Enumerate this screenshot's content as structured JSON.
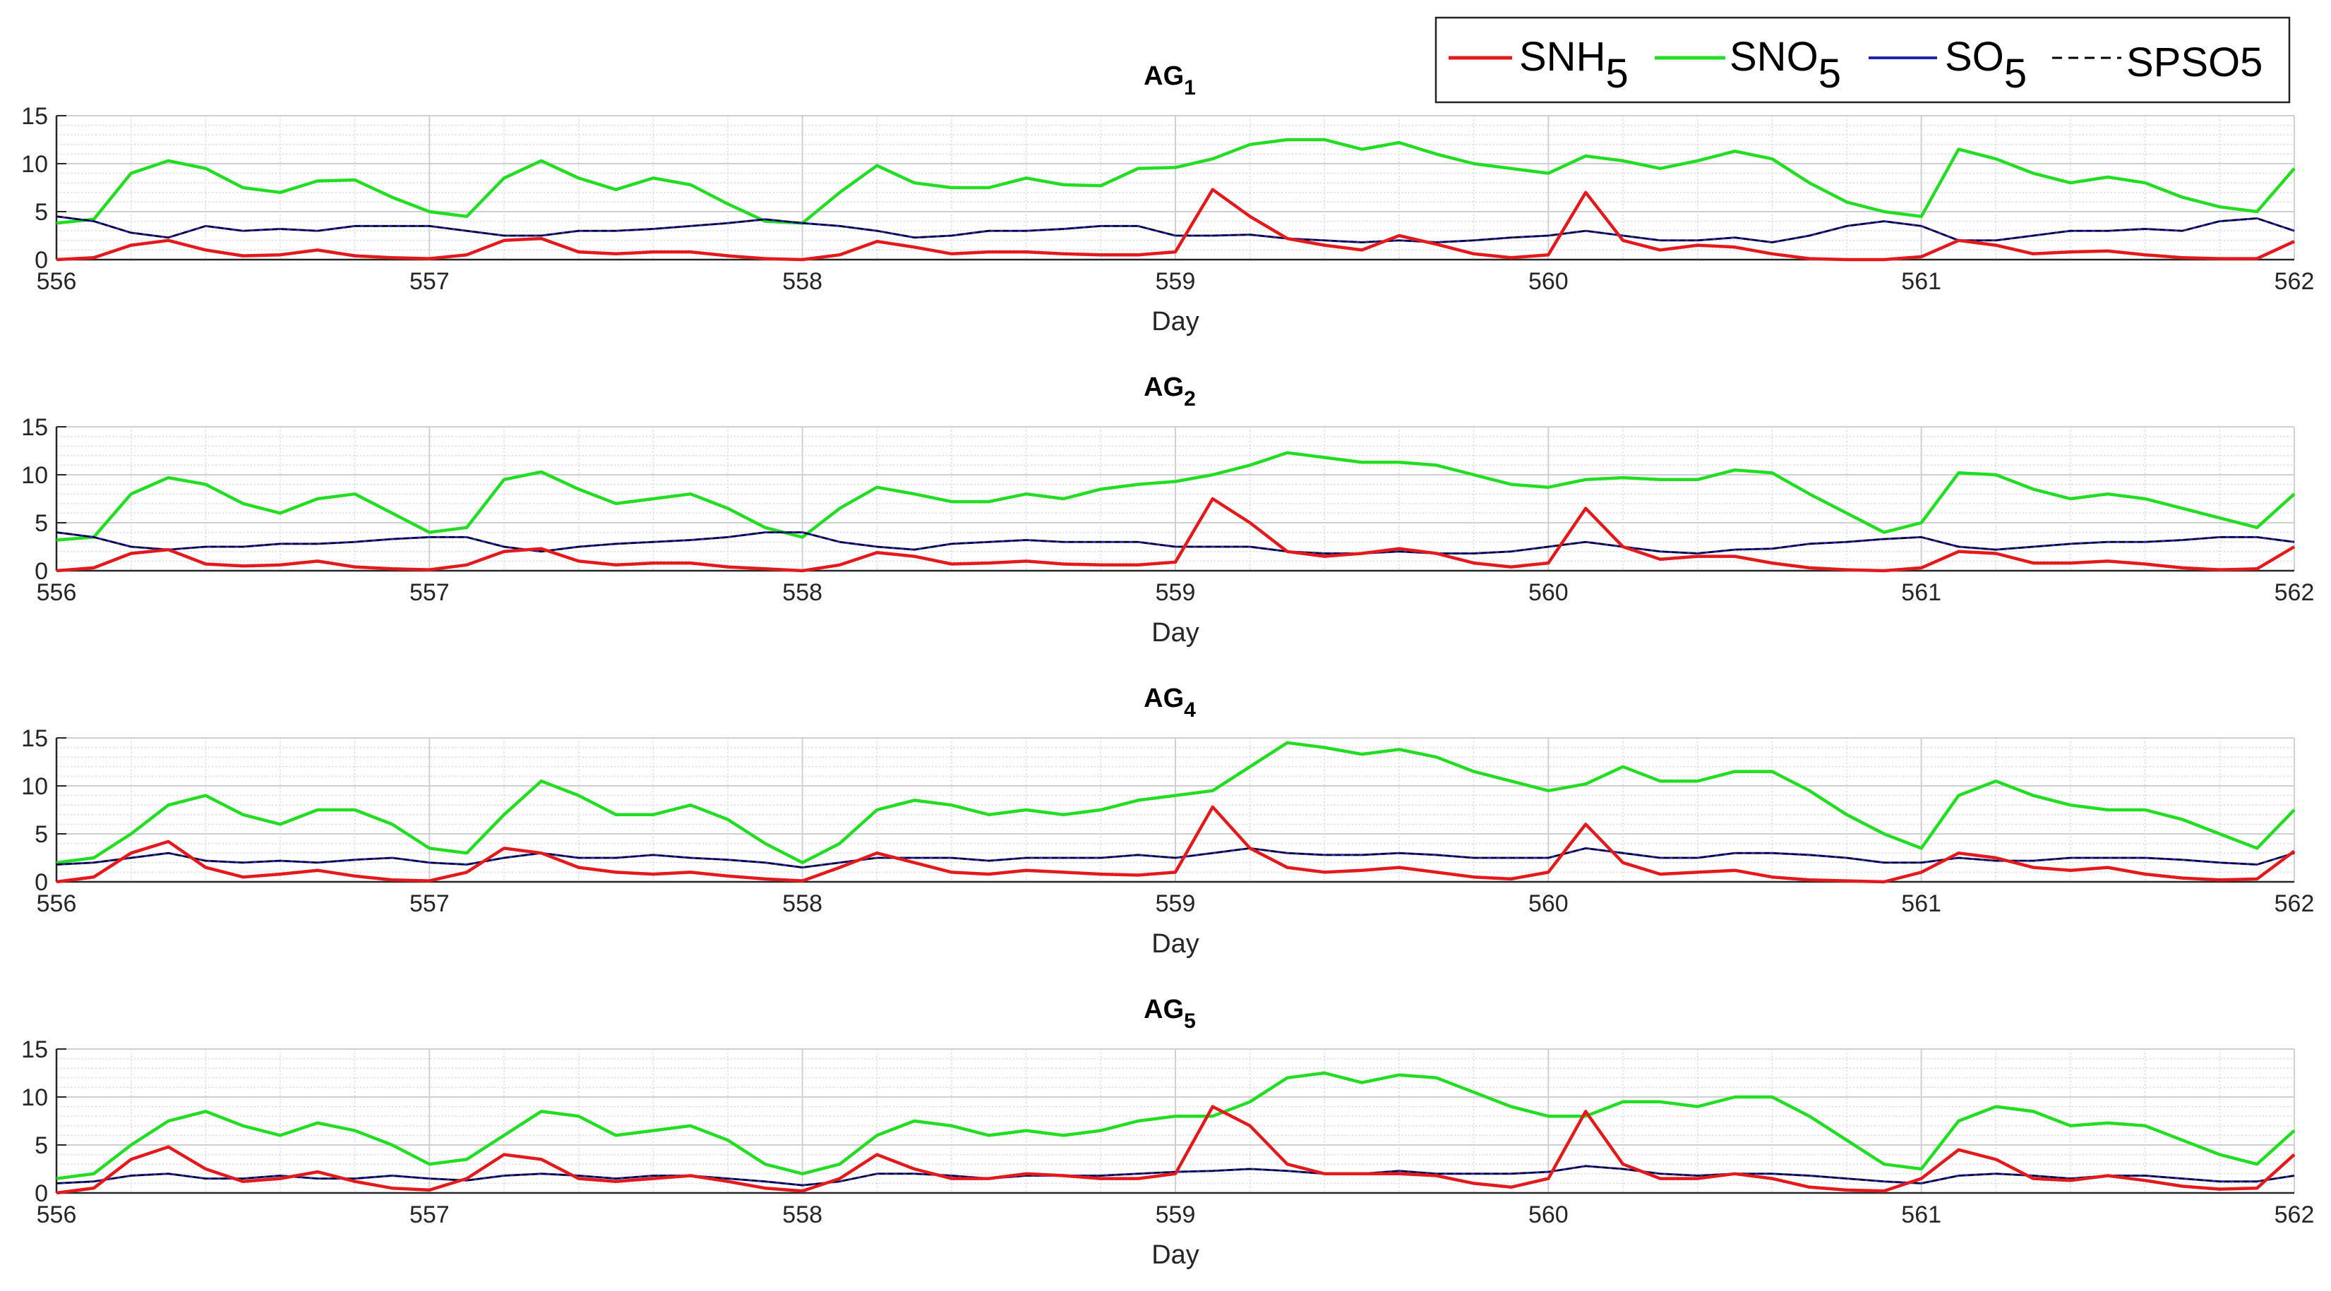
{
  "chart_data": {
    "type": "line",
    "xlabel": "Day",
    "ylabel": "",
    "xlim": [
      556,
      562
    ],
    "ylim": [
      0,
      15
    ],
    "xticks": [
      "556",
      "557",
      "558",
      "559",
      "560",
      "561",
      "562"
    ],
    "yticks": [
      "0",
      "5",
      "10",
      "15"
    ],
    "grid": "on (major + minor)",
    "legend": {
      "placement": "top-right",
      "entries": [
        {
          "name": "SNH",
          "sub": "5",
          "color": "#e31a1c",
          "style": "solid"
        },
        {
          "name": "SNO",
          "sub": "5",
          "color": "#22dd22",
          "style": "solid"
        },
        {
          "name": "SO",
          "sub": "5",
          "color": "#2222aa",
          "style": "solid"
        },
        {
          "name": "SPSO5",
          "sub": "",
          "color": "#000000",
          "style": "dashed"
        }
      ]
    },
    "x_start": 556,
    "x_step": 0.1,
    "panels": [
      {
        "title": "AG",
        "title_sub": "1",
        "SNH": [
          0,
          0.2,
          1.5,
          2,
          1,
          0.4,
          0.5,
          1,
          0.4,
          0.2,
          0.1,
          0.5,
          2,
          2.2,
          0.8,
          0.6,
          0.8,
          0.8,
          0.4,
          0.1,
          0,
          0.5,
          1.9,
          1.3,
          0.6,
          0.8,
          0.8,
          0.6,
          0.5,
          0.5,
          0.8,
          7.3,
          4.5,
          2.2,
          1.5,
          1,
          2.5,
          1.6,
          0.6,
          0.2,
          0.5,
          7,
          2,
          1,
          1.5,
          1.3,
          0.6,
          0.1,
          0,
          0,
          0.3,
          2,
          1.5,
          0.6,
          0.8,
          0.9,
          0.5,
          0.2,
          0.1,
          0.1,
          1.9
        ],
        "SNO": [
          3.8,
          4.2,
          9,
          10.3,
          9.5,
          7.5,
          7,
          8.2,
          8.3,
          6.5,
          5,
          4.5,
          8.5,
          10.3,
          8.5,
          7.3,
          8.5,
          7.8,
          5.8,
          4,
          3.8,
          7,
          9.8,
          8,
          7.5,
          7.5,
          8.5,
          7.8,
          7.7,
          9.5,
          9.6,
          10.5,
          12,
          12.5,
          12.5,
          11.5,
          12.2,
          11,
          10,
          9.5,
          9,
          10.8,
          10.3,
          9.5,
          10.3,
          11.3,
          10.5,
          8,
          6,
          5,
          4.5,
          11.5,
          10.5,
          9,
          8,
          8.6,
          8,
          6.5,
          5.5,
          5,
          9.5
        ],
        "SO": [
          4.5,
          4,
          2.8,
          2.3,
          3.5,
          3,
          3.2,
          3,
          3.5,
          3.5,
          3.5,
          3,
          2.5,
          2.5,
          3,
          3,
          3.2,
          3.5,
          3.8,
          4.2,
          3.8,
          3.5,
          3,
          2.3,
          2.5,
          3,
          3,
          3.2,
          3.5,
          3.5,
          2.5,
          2.5,
          2.6,
          2.2,
          2,
          1.8,
          2,
          1.8,
          2,
          2.3,
          2.5,
          3,
          2.5,
          2,
          2,
          2.3,
          1.8,
          2.5,
          3.5,
          4,
          3.5,
          2,
          2,
          2.5,
          3,
          3,
          3.2,
          3,
          4,
          4.3,
          3
        ],
        "SPSO5_follows": "SO"
      },
      {
        "title": "AG",
        "title_sub": "2",
        "SNH": [
          0,
          0.3,
          1.8,
          2.2,
          0.7,
          0.5,
          0.6,
          1,
          0.4,
          0.2,
          0.1,
          0.6,
          2,
          2.3,
          1,
          0.6,
          0.8,
          0.8,
          0.4,
          0.2,
          0,
          0.6,
          1.9,
          1.5,
          0.7,
          0.8,
          1,
          0.7,
          0.6,
          0.6,
          0.9,
          7.5,
          5,
          2,
          1.5,
          1.8,
          2.3,
          1.8,
          0.8,
          0.4,
          0.8,
          6.5,
          2.5,
          1.2,
          1.5,
          1.5,
          0.8,
          0.3,
          0.1,
          0,
          0.3,
          2,
          1.8,
          0.8,
          0.8,
          1,
          0.7,
          0.3,
          0.1,
          0.2,
          2.5
        ],
        "SNO": [
          3.2,
          3.5,
          8,
          9.7,
          9,
          7,
          6,
          7.5,
          8,
          6,
          4,
          4.5,
          9.5,
          10.3,
          8.5,
          7,
          7.5,
          8,
          6.5,
          4.5,
          3.5,
          6.5,
          8.7,
          8,
          7.2,
          7.2,
          8,
          7.5,
          8.5,
          9,
          9.3,
          10,
          11,
          12.3,
          11.8,
          11.3,
          11.3,
          11,
          10,
          9,
          8.7,
          9.5,
          9.7,
          9.5,
          9.5,
          10.5,
          10.2,
          8,
          6,
          4,
          5,
          10.2,
          10,
          8.5,
          7.5,
          8,
          7.5,
          6.5,
          5.5,
          4.5,
          8
        ],
        "SO": [
          4,
          3.5,
          2.5,
          2.2,
          2.5,
          2.5,
          2.8,
          2.8,
          3,
          3.3,
          3.5,
          3.5,
          2.5,
          2,
          2.5,
          2.8,
          3,
          3.2,
          3.5,
          4,
          4,
          3,
          2.5,
          2.2,
          2.8,
          3,
          3.2,
          3,
          3,
          3,
          2.5,
          2.5,
          2.5,
          2,
          1.8,
          1.8,
          2,
          1.8,
          1.8,
          2,
          2.5,
          3,
          2.5,
          2,
          1.8,
          2.2,
          2.3,
          2.8,
          3,
          3.3,
          3.5,
          2.5,
          2.2,
          2.5,
          2.8,
          3,
          3,
          3.2,
          3.5,
          3.5,
          3
        ],
        "SPSO5_follows": "SO"
      },
      {
        "title": "AG",
        "title_sub": "4",
        "SNH": [
          0,
          0.5,
          3,
          4.2,
          1.5,
          0.5,
          0.8,
          1.2,
          0.6,
          0.2,
          0.1,
          1,
          3.5,
          3,
          1.5,
          1,
          0.8,
          1,
          0.6,
          0.3,
          0.1,
          1.5,
          3,
          2,
          1,
          0.8,
          1.2,
          1,
          0.8,
          0.7,
          1,
          7.8,
          3.5,
          1.5,
          1,
          1.2,
          1.5,
          1,
          0.5,
          0.3,
          1,
          6,
          2,
          0.8,
          1,
          1.2,
          0.5,
          0.2,
          0.1,
          0,
          1,
          3,
          2.5,
          1.5,
          1.2,
          1.5,
          0.8,
          0.4,
          0.2,
          0.3,
          3.2
        ],
        "SNO": [
          2,
          2.5,
          5,
          8,
          9,
          7,
          6,
          7.5,
          7.5,
          6,
          3.5,
          3,
          7,
          10.5,
          9,
          7,
          7,
          8,
          6.5,
          4,
          2,
          4,
          7.5,
          8.5,
          8,
          7,
          7.5,
          7,
          7.5,
          8.5,
          9,
          9.5,
          12,
          14.5,
          14,
          13.3,
          13.8,
          13,
          11.5,
          10.5,
          9.5,
          10.2,
          12,
          10.5,
          10.5,
          11.5,
          11.5,
          9.5,
          7,
          5,
          3.5,
          9,
          10.5,
          9,
          8,
          7.5,
          7.5,
          6.5,
          5,
          3.5,
          7.5
        ],
        "SO": [
          1.8,
          2,
          2.5,
          3,
          2.2,
          2,
          2.2,
          2,
          2.3,
          2.5,
          2,
          1.8,
          2.5,
          3,
          2.5,
          2.5,
          2.8,
          2.5,
          2.3,
          2,
          1.5,
          2,
          2.5,
          2.5,
          2.5,
          2.2,
          2.5,
          2.5,
          2.5,
          2.8,
          2.5,
          3,
          3.5,
          3,
          2.8,
          2.8,
          3,
          2.8,
          2.5,
          2.5,
          2.5,
          3.5,
          3,
          2.5,
          2.5,
          3,
          3,
          2.8,
          2.5,
          2,
          2,
          2.5,
          2.2,
          2.2,
          2.5,
          2.5,
          2.5,
          2.3,
          2,
          1.8,
          3
        ],
        "SPSO5_follows": "SO"
      },
      {
        "title": "AG",
        "title_sub": "5",
        "SNH": [
          0,
          0.5,
          3.5,
          4.8,
          2.5,
          1.2,
          1.5,
          2.2,
          1.2,
          0.5,
          0.3,
          1.5,
          4,
          3.5,
          1.5,
          1.2,
          1.5,
          1.8,
          1.2,
          0.5,
          0.2,
          1.5,
          4,
          2.5,
          1.5,
          1.5,
          2,
          1.8,
          1.5,
          1.5,
          2,
          9,
          7,
          3,
          2,
          2,
          2,
          1.8,
          1,
          0.6,
          1.5,
          8.5,
          3,
          1.5,
          1.5,
          2,
          1.5,
          0.6,
          0.3,
          0.2,
          1.5,
          4.5,
          3.5,
          1.5,
          1.3,
          1.8,
          1.3,
          0.7,
          0.4,
          0.5,
          4
        ],
        "SNO": [
          1.5,
          2,
          5,
          7.5,
          8.5,
          7,
          6,
          7.3,
          6.5,
          5,
          3,
          3.5,
          6,
          8.5,
          8,
          6,
          6.5,
          7,
          5.5,
          3,
          2,
          3,
          6,
          7.5,
          7,
          6,
          6.5,
          6,
          6.5,
          7.5,
          8,
          8,
          9.5,
          12,
          12.5,
          11.5,
          12.3,
          12,
          10.5,
          9,
          8,
          8,
          9.5,
          9.5,
          9,
          10,
          10,
          8,
          5.5,
          3,
          2.5,
          7.5,
          9,
          8.5,
          7,
          7.3,
          7,
          5.5,
          4,
          3,
          6.5
        ],
        "SO": [
          1,
          1.2,
          1.8,
          2,
          1.5,
          1.5,
          1.8,
          1.5,
          1.5,
          1.8,
          1.5,
          1.3,
          1.8,
          2,
          1.8,
          1.5,
          1.8,
          1.8,
          1.5,
          1.2,
          0.8,
          1.2,
          2,
          2,
          1.8,
          1.5,
          1.8,
          1.8,
          1.8,
          2,
          2.2,
          2.3,
          2.5,
          2.3,
          2,
          2,
          2.3,
          2,
          2,
          2,
          2.2,
          2.8,
          2.5,
          2,
          1.8,
          2,
          2,
          1.8,
          1.5,
          1.2,
          1,
          1.8,
          2,
          1.8,
          1.5,
          1.8,
          1.8,
          1.5,
          1.2,
          1.2,
          1.8
        ],
        "SPSO5_follows": "SO"
      }
    ]
  }
}
